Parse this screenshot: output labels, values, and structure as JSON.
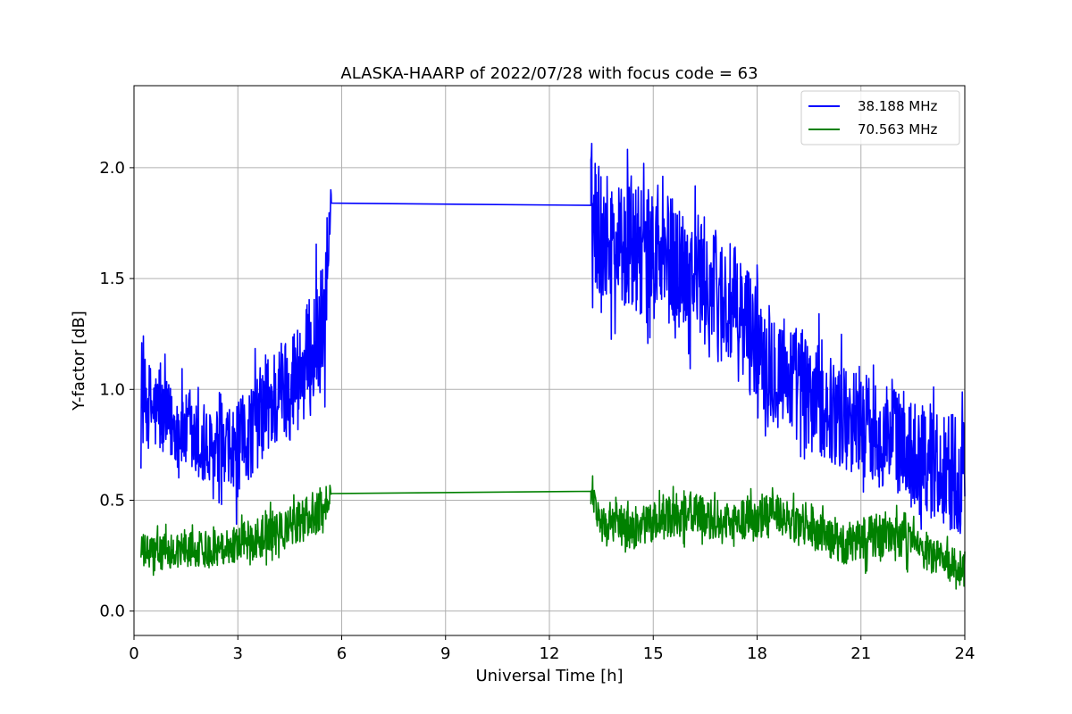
{
  "chart_data": {
    "type": "line",
    "title": "ALASKA-HAARP of 2022/07/28 with focus code = 63",
    "xlabel": "Universal Time [h]",
    "ylabel": "Y-factor [dB]",
    "xlim": [
      0,
      24
    ],
    "ylim": [
      -0.11,
      2.37
    ],
    "xticks": [
      0,
      3,
      6,
      9,
      12,
      15,
      18,
      21,
      24
    ],
    "xtick_labels": [
      "0",
      "3",
      "6",
      "9",
      "12",
      "15",
      "18",
      "21",
      "24"
    ],
    "yticks": [
      0.0,
      0.5,
      1.0,
      1.5,
      2.0
    ],
    "ytick_labels": [
      "0.0",
      "0.5",
      "1.0",
      "1.5",
      "2.0"
    ],
    "grid": true,
    "legend_position": "top-right",
    "series": [
      {
        "name": "38.188 MHz",
        "color": "#0000ff",
        "x": [
          0.2,
          0.5,
          1.0,
          1.5,
          2.0,
          2.5,
          3.0,
          3.5,
          4.0,
          4.5,
          5.0,
          5.5,
          5.7,
          13.2,
          13.5,
          14.0,
          14.5,
          15.0,
          15.5,
          16.0,
          16.5,
          17.0,
          17.5,
          18.0,
          18.5,
          19.0,
          19.5,
          20.0,
          20.5,
          21.0,
          21.5,
          22.0,
          22.5,
          23.0,
          23.5,
          24.0
        ],
        "values": [
          0.95,
          0.92,
          0.85,
          0.8,
          0.72,
          0.68,
          0.72,
          0.85,
          0.95,
          1.02,
          1.12,
          1.3,
          1.84,
          1.83,
          1.7,
          1.66,
          1.62,
          1.6,
          1.58,
          1.55,
          1.48,
          1.4,
          1.32,
          1.22,
          1.12,
          1.05,
          0.98,
          0.92,
          0.88,
          0.85,
          0.8,
          0.78,
          0.72,
          0.68,
          0.64,
          0.62
        ],
        "noise": [
          0.2,
          0.2,
          0.18,
          0.18,
          0.2,
          0.2,
          0.22,
          0.22,
          0.24,
          0.25,
          0.27,
          0.3,
          0.1,
          0.3,
          0.3,
          0.28,
          0.3,
          0.3,
          0.3,
          0.28,
          0.3,
          0.3,
          0.3,
          0.28,
          0.28,
          0.26,
          0.26,
          0.24,
          0.24,
          0.24,
          0.24,
          0.24,
          0.24,
          0.26,
          0.28,
          0.28
        ]
      },
      {
        "name": "70.563 MHz",
        "color": "#008000",
        "x": [
          0.2,
          0.5,
          1.0,
          1.5,
          2.0,
          2.5,
          3.0,
          3.5,
          4.0,
          4.5,
          5.0,
          5.5,
          5.7,
          13.2,
          13.5,
          14.0,
          14.5,
          15.0,
          15.5,
          16.0,
          16.5,
          17.0,
          17.5,
          18.0,
          18.5,
          19.0,
          19.5,
          20.0,
          20.5,
          21.0,
          21.5,
          22.0,
          22.5,
          23.0,
          23.5,
          24.0
        ],
        "values": [
          0.27,
          0.26,
          0.27,
          0.28,
          0.28,
          0.29,
          0.31,
          0.33,
          0.35,
          0.38,
          0.42,
          0.47,
          0.53,
          0.54,
          0.4,
          0.38,
          0.37,
          0.4,
          0.42,
          0.45,
          0.42,
          0.4,
          0.41,
          0.42,
          0.43,
          0.4,
          0.36,
          0.33,
          0.3,
          0.32,
          0.34,
          0.34,
          0.3,
          0.26,
          0.2,
          0.19
        ],
        "noise": [
          0.08,
          0.08,
          0.08,
          0.08,
          0.08,
          0.08,
          0.09,
          0.09,
          0.09,
          0.09,
          0.1,
          0.1,
          0.03,
          0.06,
          0.09,
          0.09,
          0.09,
          0.09,
          0.1,
          0.1,
          0.09,
          0.09,
          0.09,
          0.09,
          0.1,
          0.09,
          0.09,
          0.09,
          0.09,
          0.1,
          0.1,
          0.09,
          0.09,
          0.09,
          0.09,
          0.08
        ]
      }
    ]
  }
}
